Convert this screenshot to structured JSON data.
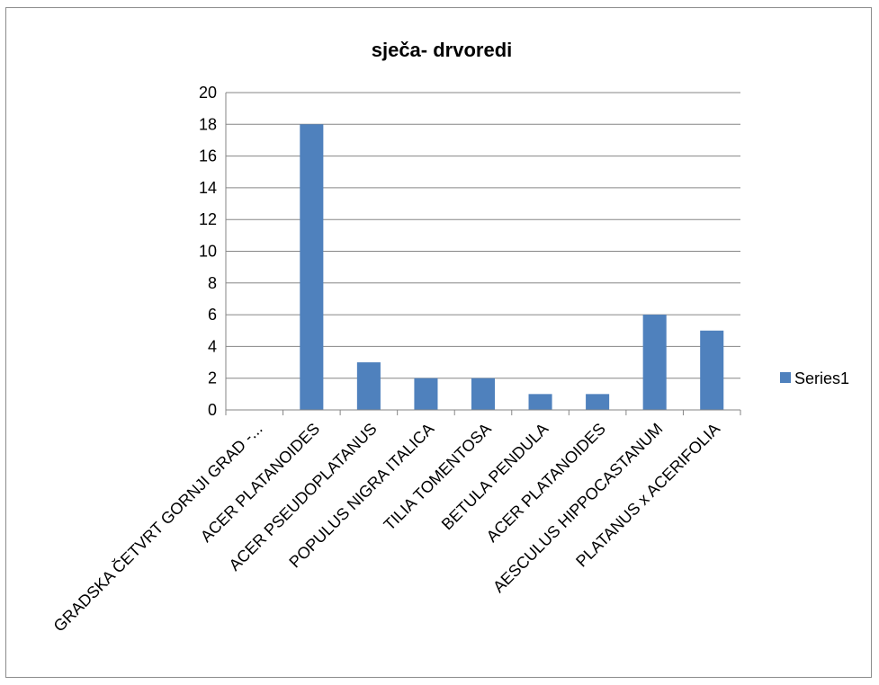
{
  "chart_data": {
    "type": "bar",
    "title": "sječa- drvoredi",
    "categories": [
      "GRADSKA ČETVRT GORNJI GRAD -...",
      "ACER PLATANOIDES",
      "ACER PSEUDOPLATANUS",
      "POPULUS NIGRA ITALICA",
      "TILIA TOMENTOSA",
      "BETULA PENDULA",
      "ACER PLATANOIDES",
      "AESCULUS HIPPOCASTANUM",
      "PLATANUS x ACERIFOLIA"
    ],
    "series": [
      {
        "name": "Series1",
        "values": [
          0,
          18,
          3,
          2,
          2,
          1,
          1,
          6,
          5
        ],
        "color": "#4F81BD"
      }
    ],
    "ylim": [
      0,
      20
    ],
    "yticks": [
      "0",
      "2",
      "4",
      "6",
      "8",
      "10",
      "12",
      "14",
      "16",
      "18",
      "20"
    ],
    "grid": true,
    "legend_position": "right"
  },
  "colors": {
    "bar": "#4F81BD",
    "grid": "#868686",
    "border": "#8c8c8c"
  }
}
